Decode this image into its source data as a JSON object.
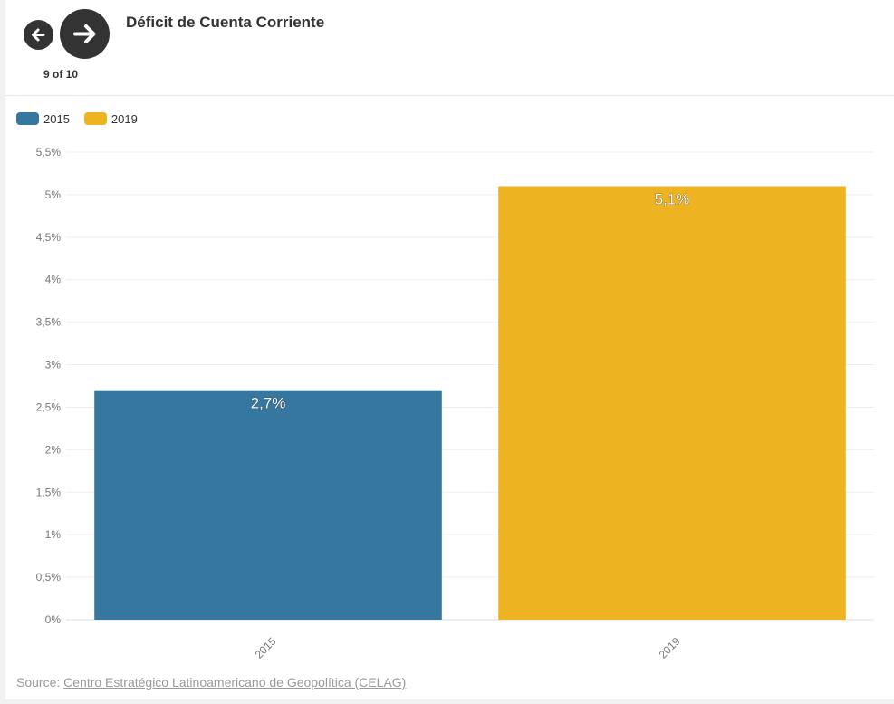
{
  "header": {
    "title": "Déficit de Cuenta Corriente",
    "pager": "9 of 10",
    "prev_icon": "arrow-left-icon",
    "next_icon": "arrow-right-icon"
  },
  "source": {
    "prefix": "Source: ",
    "link_text": "Centro Estratégico Latinoamericano de Geopolítica (CELAG)"
  },
  "colors": {
    "series_2015": "#35779f",
    "series_2019": "#edb320"
  },
  "chart_data": {
    "type": "bar",
    "title": "Déficit de Cuenta Corriente",
    "xlabel": "",
    "ylabel": "",
    "categories": [
      "2015",
      "2019"
    ],
    "values": [
      2.7,
      5.1
    ],
    "value_labels": [
      "2,7%",
      "5,1%"
    ],
    "legend": [
      "2015",
      "2019"
    ],
    "legend_placement": "top-left",
    "ylim": [
      0,
      5.5
    ],
    "y_ticks": [
      0,
      0.5,
      1,
      1.5,
      2,
      2.5,
      3,
      3.5,
      4,
      4.5,
      5,
      5.5
    ],
    "y_tick_labels": [
      "0%",
      "0,5%",
      "1%",
      "1,5%",
      "2%",
      "2,5%",
      "3%",
      "3,5%",
      "4%",
      "4,5%",
      "5%",
      "5,5%"
    ],
    "x_tick_labels": [
      "2015",
      "2019"
    ],
    "grid": true
  }
}
